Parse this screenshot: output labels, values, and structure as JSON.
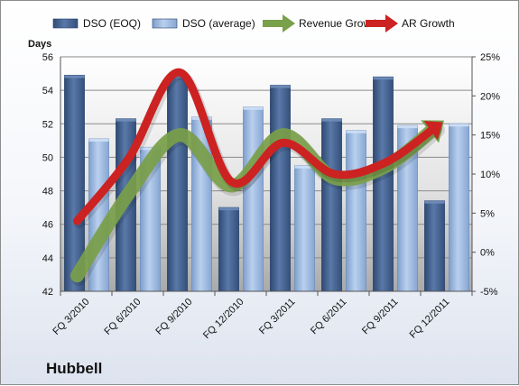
{
  "company_name": "Hubbell",
  "chart_data": {
    "type": "bar",
    "title": "",
    "ylabel": "Days",
    "categories": [
      "FQ 3/2010",
      "FQ 6/2010",
      "FQ 9/2010",
      "FQ 12/2010",
      "FQ 3/2011",
      "FQ 6/2011",
      "FQ 9/2011",
      "FQ 12/2011"
    ],
    "ylim": [
      42,
      56
    ],
    "y_ticks": [
      42,
      44,
      46,
      48,
      50,
      52,
      54,
      56
    ],
    "y2lim": [
      -5,
      25
    ],
    "y2_ticks": [
      -5,
      0,
      5,
      10,
      15,
      20,
      25
    ],
    "y2_tick_labels": [
      "-5%",
      "0%",
      "5%",
      "10%",
      "15%",
      "20%",
      "25%"
    ],
    "grid": true,
    "legend_position": "top",
    "series": [
      {
        "name": "DSO (EOQ)",
        "type": "bar",
        "axis": "left",
        "color": "#4f6d9c",
        "values": [
          54.9,
          52.3,
          54.9,
          47.0,
          54.3,
          52.3,
          54.8,
          47.4
        ]
      },
      {
        "name": "DSO (average)",
        "type": "bar",
        "axis": "left",
        "color": "#9dbbe3",
        "values": [
          51.1,
          50.6,
          52.4,
          53.0,
          49.5,
          51.6,
          51.9,
          52.0
        ]
      },
      {
        "name": "Revenue Growth",
        "type": "line",
        "axis": "right",
        "color": "#79a04a",
        "arrow": true,
        "values": [
          -3.0,
          7.5,
          15.0,
          8.5,
          15.0,
          9.5,
          11.0,
          16.0
        ]
      },
      {
        "name": "AR Growth",
        "type": "line",
        "axis": "right",
        "color": "#cc2222",
        "arrow": true,
        "values": [
          4.0,
          12.0,
          23.0,
          9.0,
          14.0,
          10.0,
          11.5,
          16.0
        ]
      }
    ]
  }
}
